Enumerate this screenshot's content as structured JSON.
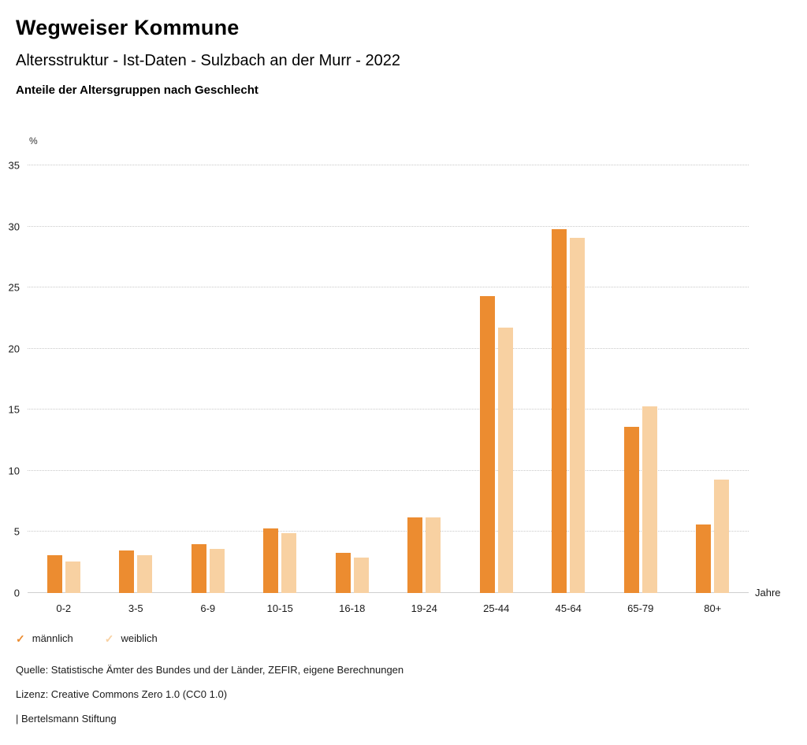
{
  "page": {
    "title": "Wegweiser Kommune",
    "subtitle": "Altersstruktur - Ist-Daten - Sulzbach an der Murr - 2022",
    "chart_heading": "Anteile der Altersgruppen nach Geschlecht"
  },
  "chart_data": {
    "type": "bar",
    "title": "Anteile der Altersgruppen nach Geschlecht",
    "unit_label": "%",
    "x_unit_label": "Jahre",
    "categories": [
      "0-2",
      "3-5",
      "6-9",
      "10-15",
      "16-18",
      "19-24",
      "25-44",
      "45-64",
      "65-79",
      "80+"
    ],
    "series": [
      {
        "name": "männlich",
        "color": "#EC8C30",
        "values": [
          3.1,
          3.5,
          4.0,
          5.3,
          3.3,
          6.2,
          24.3,
          29.8,
          13.6,
          5.6
        ]
      },
      {
        "name": "weiblich",
        "color": "#F8D1A2",
        "values": [
          2.6,
          3.1,
          3.6,
          4.9,
          2.9,
          6.2,
          21.7,
          29.1,
          15.3,
          9.3
        ]
      }
    ],
    "ylim": [
      0,
      35
    ],
    "yticks": [
      0,
      5,
      10,
      15,
      20,
      25,
      30,
      35
    ],
    "grid": true,
    "legend_position": "bottom"
  },
  "legend": {
    "check_icon": "✓"
  },
  "footer": {
    "source": "Quelle: Statistische Ämter des Bundes und der Länder, ZEFIR, eigene Berechnungen",
    "license": "Lizenz: Creative Commons Zero 1.0 (CC0 1.0)",
    "attribution": "| Bertelsmann Stiftung"
  }
}
